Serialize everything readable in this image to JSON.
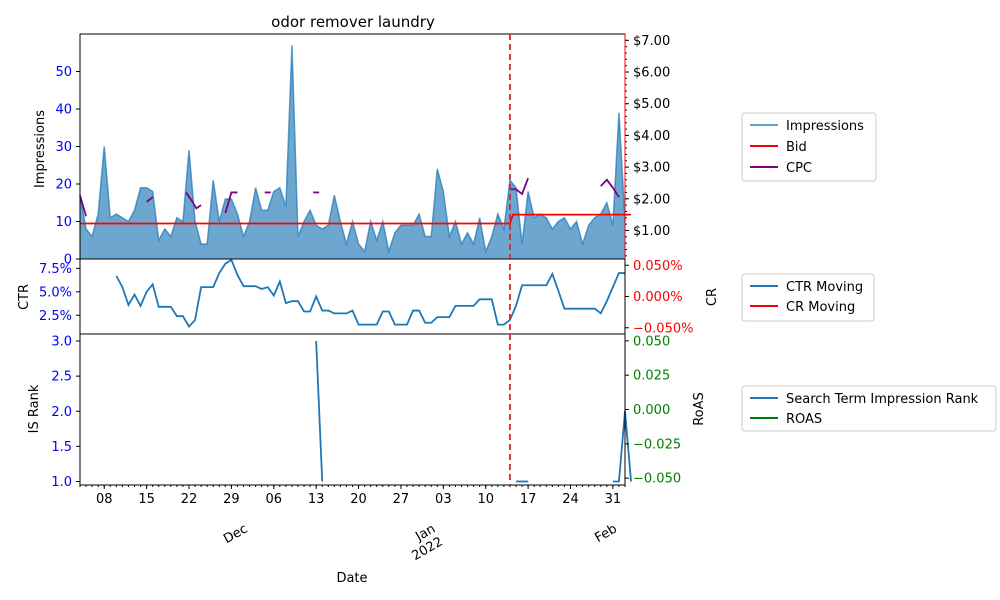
{
  "chart_data": {
    "type": "line",
    "title": "odor remover laundry",
    "xlabel": "Date",
    "x_ticks": [
      "08",
      "15",
      "22",
      "29",
      "06",
      "13",
      "20",
      "27",
      "03",
      "10",
      "17",
      "24",
      "31"
    ],
    "x_month_labels": [
      [
        "Dec"
      ],
      [
        "Jan",
        "2022"
      ],
      [
        "Feb"
      ]
    ],
    "event_line_date": "2022-01-13",
    "colors": {
      "impressions": "#1f77b4",
      "bid": "#ff0000",
      "cpc": "#800080",
      "ctr": "#1f77b4",
      "cr": "#ff0000",
      "is_rank": "#1f77b4",
      "roas": "#008000",
      "event": "#d62728",
      "left_ticks": "#0000ff",
      "right_ticks_top": "#ff0000",
      "right_ticks_bottom": "#008000"
    },
    "panel_top": {
      "ylabel": "Impressions",
      "ylim": [
        0,
        60
      ],
      "yticks": [
        0,
        10,
        20,
        30,
        40,
        50
      ],
      "right_ylim": [
        0.1,
        7.2
      ],
      "right_yticks": [
        "$1.00",
        "$2.00",
        "$3.00",
        "$4.00",
        "$5.00",
        "$6.00",
        "$7.00"
      ],
      "right_ytick_values": [
        1,
        2,
        3,
        4,
        5,
        6,
        7
      ],
      "impressions": [
        17,
        8,
        6,
        12,
        30,
        11,
        12,
        11,
        10,
        13,
        19,
        19,
        18,
        5,
        8,
        6,
        11,
        10,
        29,
        10,
        4,
        4,
        21,
        10,
        16,
        16,
        12,
        6,
        10,
        19,
        13,
        13,
        18,
        19,
        14,
        57,
        6,
        10,
        13,
        9,
        8,
        9,
        17,
        10,
        4,
        10,
        4,
        2,
        10,
        5,
        10,
        2,
        7,
        9,
        9,
        9,
        12,
        6,
        6,
        24,
        18,
        6,
        10,
        4,
        7,
        4,
        11,
        2,
        6,
        12,
        8,
        21,
        19,
        4,
        18,
        11,
        12,
        11,
        8,
        10,
        11,
        8,
        10,
        4,
        9,
        11,
        12,
        15,
        9,
        39,
        10
      ],
      "bid": [
        [
          0,
          1.22
        ],
        [
          71,
          1.22
        ],
        [
          71.5,
          1.5
        ],
        [
          91,
          1.5
        ]
      ],
      "cpc_segments": [
        [
          [
            0,
            2.1
          ],
          [
            1,
            1.45
          ]
        ],
        [
          [
            11,
            1.9
          ],
          [
            12,
            2.05
          ]
        ],
        [
          [
            17.5,
            2.2
          ],
          [
            18.6,
            1.9
          ],
          [
            19.2,
            1.7
          ],
          [
            20,
            1.8
          ]
        ],
        [
          [
            24,
            1.55
          ],
          [
            25,
            2.2
          ],
          [
            26,
            2.2
          ]
        ],
        [
          [
            30.5,
            2.2
          ],
          [
            31.5,
            2.2
          ]
        ],
        [
          [
            38.5,
            2.2
          ],
          [
            39.5,
            2.2
          ]
        ],
        [
          [
            71,
            2.3
          ],
          [
            72,
            2.3
          ],
          [
            73,
            2.15
          ],
          [
            74,
            2.65
          ]
        ],
        [
          [
            86,
            2.4
          ],
          [
            87,
            2.6
          ],
          [
            88,
            2.35
          ],
          [
            89,
            2.05
          ]
        ]
      ],
      "legend": [
        "Impressions",
        "Bid",
        "CPC"
      ]
    },
    "panel_mid": {
      "ylabel": "CTR",
      "right_ylabel": "CR",
      "ylim": [
        0.5,
        8.5
      ],
      "yticks": [
        "2.5%",
        "5.0%",
        "7.5%"
      ],
      "ytick_values": [
        2.5,
        5.0,
        7.5
      ],
      "right_ylim": [
        -0.06,
        0.06
      ],
      "right_yticks": [
        "−0.050%",
        "0.000%",
        "0.050%"
      ],
      "right_ytick_values": [
        -0.05,
        0,
        0.05
      ],
      "ctr_moving": [
        null,
        null,
        null,
        null,
        null,
        null,
        6.7,
        5.5,
        3.6,
        4.7,
        3.5,
        5.0,
        5.8,
        3.4,
        3.4,
        3.4,
        2.4,
        2.4,
        1.3,
        2.0,
        5.5,
        5.5,
        5.5,
        7.0,
        8.0,
        8.4,
        6.8,
        5.6,
        5.6,
        5.6,
        5.3,
        5.5,
        4.6,
        6.1,
        3.8,
        4.0,
        4.0,
        2.9,
        2.9,
        4.5,
        3.0,
        3.0,
        2.7,
        2.7,
        2.7,
        3.0,
        1.5,
        1.5,
        1.5,
        1.5,
        2.9,
        2.9,
        1.5,
        1.5,
        1.5,
        3.0,
        3.0,
        1.7,
        1.7,
        2.3,
        2.3,
        2.3,
        3.5,
        3.5,
        3.5,
        3.5,
        4.2,
        4.2,
        4.2,
        1.5,
        1.5,
        2.0,
        3.5,
        5.7,
        5.7,
        5.7,
        5.7,
        5.7,
        6.9,
        5.1,
        3.2,
        3.2,
        3.2,
        3.2,
        3.2,
        3.2,
        2.7,
        4.0,
        5.5,
        7.0,
        7.0
      ],
      "legend": [
        "CTR Moving",
        "CR Moving"
      ]
    },
    "panel_bot": {
      "ylabel": "IS Rank",
      "right_ylabel": "RoAS",
      "ylim": [
        0.95,
        3.1
      ],
      "yticks": [
        "1.0",
        "1.5",
        "2.0",
        "2.5",
        "3.0"
      ],
      "ytick_values": [
        1.0,
        1.5,
        2.0,
        2.5,
        3.0
      ],
      "right_ylim": [
        -0.055,
        0.055
      ],
      "right_yticks": [
        "−0.050",
        "−0.025",
        "0.000",
        "0.025",
        "0.050"
      ],
      "right_ytick_values": [
        -0.05,
        -0.025,
        0,
        0.025,
        0.05
      ],
      "is_rank_segments": [
        [
          [
            39,
            3.0
          ],
          [
            40,
            1.0
          ]
        ],
        [
          [
            72,
            1.0
          ],
          [
            74,
            1.0
          ]
        ],
        [
          [
            88,
            1.0
          ],
          [
            89,
            1.0
          ],
          [
            90,
            2.0
          ],
          [
            91,
            1.0
          ]
        ]
      ],
      "legend": [
        "Search Term Impression Rank",
        "ROAS"
      ]
    }
  }
}
